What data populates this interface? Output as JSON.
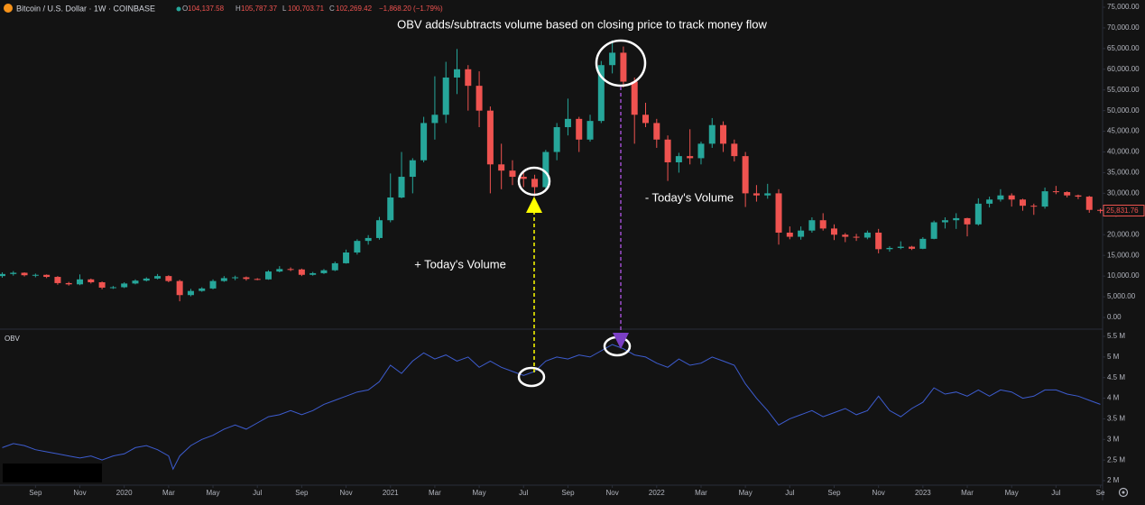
{
  "header": {
    "symbol": "Bitcoin / U.S. Dollar · 1W · COINBASE",
    "ohlc_letters": [
      "O",
      "H",
      "L",
      "C"
    ],
    "ohlc_values": [
      "104,137.58",
      "105,787.37",
      "100,703.71",
      "102,269.42"
    ],
    "change": "−1,868.20 (−1.79%)"
  },
  "chart_data": [
    {
      "type": "candlestick",
      "title": "OBV adds/subtracts volume based on closing price to track money flow",
      "annotations": [
        "+ Today's Volume",
        "- Today's Volume"
      ],
      "up_color": "#26a69a",
      "down_color": "#ef5350",
      "ylim": [
        0,
        75000
      ],
      "yticks": [
        {
          "value": 0,
          "label": "0.00"
        },
        {
          "value": 5000,
          "label": "5,000.00"
        },
        {
          "value": 10000,
          "label": "10,000.00"
        },
        {
          "value": 15000,
          "label": "15,000.00"
        },
        {
          "value": 20000,
          "label": "20,000.00"
        },
        {
          "value": 25000,
          "label": "25,000.00"
        },
        {
          "value": 30000,
          "label": "30,000.00"
        },
        {
          "value": 35000,
          "label": "35,000.00"
        },
        {
          "value": 40000,
          "label": "40,000.00"
        },
        {
          "value": 45000,
          "label": "45,000.00"
        },
        {
          "value": 50000,
          "label": "50,000.00"
        },
        {
          "value": 55000,
          "label": "55,000.00"
        },
        {
          "value": 60000,
          "label": "60,000.00"
        },
        {
          "value": 65000,
          "label": "65,000.00"
        },
        {
          "value": 70000,
          "label": "70,000.00"
        },
        {
          "value": 75000,
          "label": "75,000.00"
        }
      ],
      "last_price": {
        "value": 25831.76,
        "label": "25,831.76"
      },
      "xlim": [
        -0.6,
        49.1
      ],
      "x": [
        -0.5,
        0,
        0.5,
        1,
        1.5,
        2,
        2.5,
        3,
        3.5,
        4,
        4.5,
        5,
        5.5,
        6,
        6.5,
        7,
        7.5,
        8,
        8.5,
        9,
        9.5,
        10,
        10.5,
        11,
        11.5,
        12,
        12.5,
        13,
        13.5,
        14,
        14.5,
        15,
        15.5,
        16,
        16.5,
        17,
        17.5,
        18,
        18.5,
        19,
        19.5,
        20,
        20.5,
        21,
        21.5,
        22,
        22.5,
        23,
        23.5,
        24,
        24.5,
        25,
        25.5,
        26,
        26.5,
        27,
        27.5,
        28,
        28.5,
        29,
        29.5,
        30,
        30.5,
        31,
        31.5,
        32,
        32.5,
        33,
        33.5,
        34,
        34.5,
        35,
        35.5,
        36,
        36.5,
        37,
        37.5,
        38,
        38.5,
        39,
        39.5,
        40,
        40.5,
        41,
        41.5,
        42,
        42.5,
        43,
        43.5,
        44,
        44.5,
        45,
        45.5,
        46,
        46.5,
        47,
        47.5,
        48,
        48.5,
        49
      ],
      "ohlc": [
        [
          10000,
          10900,
          9600,
          10500
        ],
        [
          10500,
          11200,
          10100,
          10800
        ],
        [
          10800,
          10900,
          9900,
          10200
        ],
        [
          10200,
          10600,
          9700,
          10300
        ],
        [
          10300,
          10400,
          9500,
          9800
        ],
        [
          9800,
          10000,
          7900,
          8300
        ],
        [
          8300,
          8600,
          7700,
          8000
        ],
        [
          8000,
          10400,
          7800,
          9200
        ],
        [
          9200,
          9400,
          8200,
          8500
        ],
        [
          8500,
          8700,
          6800,
          7200
        ],
        [
          7200,
          7600,
          6900,
          7300
        ],
        [
          7300,
          8500,
          7100,
          8200
        ],
        [
          8200,
          9200,
          8000,
          8900
        ],
        [
          8900,
          9700,
          8700,
          9400
        ],
        [
          9400,
          10500,
          9200,
          10000
        ],
        [
          10000,
          10200,
          8500,
          8800
        ],
        [
          8800,
          9100,
          3900,
          5400
        ],
        [
          5400,
          6900,
          5100,
          6400
        ],
        [
          6400,
          7300,
          6200,
          7000
        ],
        [
          7000,
          9200,
          6800,
          8800
        ],
        [
          8800,
          10000,
          8600,
          9500
        ],
        [
          9500,
          10100,
          9000,
          9700
        ],
        [
          9700,
          9900,
          8900,
          9300
        ],
        [
          9300,
          9500,
          9000,
          9200
        ],
        [
          9200,
          11400,
          9100,
          11100
        ],
        [
          11100,
          12400,
          10900,
          11700
        ],
        [
          11700,
          12100,
          11200,
          11600
        ],
        [
          11600,
          11800,
          10000,
          10300
        ],
        [
          10300,
          11000,
          10100,
          10700
        ],
        [
          10700,
          11700,
          10500,
          11400
        ],
        [
          11400,
          13500,
          11200,
          13100
        ],
        [
          13100,
          16400,
          13000,
          15700
        ],
        [
          15700,
          18900,
          15200,
          18500
        ],
        [
          18500,
          19900,
          17600,
          19200
        ],
        [
          19200,
          24300,
          18800,
          23500
        ],
        [
          23500,
          34800,
          23000,
          29000
        ],
        [
          29000,
          40000,
          28800,
          34000
        ],
        [
          34000,
          38500,
          30000,
          38000
        ],
        [
          38000,
          48500,
          37500,
          47000
        ],
        [
          47000,
          58300,
          43000,
          49000
        ],
        [
          49000,
          61800,
          47000,
          58000
        ],
        [
          58000,
          64900,
          54000,
          60000
        ],
        [
          60000,
          61000,
          50000,
          56000
        ],
        [
          56000,
          59500,
          46000,
          50000
        ],
        [
          50000,
          51000,
          30000,
          37000
        ],
        [
          37000,
          42000,
          31000,
          35500
        ],
        [
          35500,
          38000,
          32000,
          34000
        ],
        [
          34000,
          35000,
          31500,
          33500
        ],
        [
          33500,
          34500,
          29300,
          31500
        ],
        [
          31500,
          40500,
          31000,
          40000
        ],
        [
          40000,
          47000,
          38000,
          46000
        ],
        [
          46000,
          52900,
          44000,
          48000
        ],
        [
          48000,
          48500,
          40000,
          43000
        ],
        [
          43000,
          49000,
          42500,
          47500
        ],
        [
          47500,
          62000,
          47000,
          61000
        ],
        [
          61000,
          67000,
          59000,
          64000
        ],
        [
          64000,
          65500,
          55600,
          57000
        ],
        [
          57000,
          58000,
          42000,
          49000
        ],
        [
          49000,
          51900,
          46000,
          47000
        ],
        [
          47000,
          48000,
          41000,
          43000
        ],
        [
          43000,
          44000,
          33000,
          37500
        ],
        [
          37500,
          39800,
          35000,
          39000
        ],
        [
          39000,
          45500,
          37000,
          38500
        ],
        [
          38500,
          42500,
          37000,
          42000
        ],
        [
          42000,
          48200,
          41000,
          46500
        ],
        [
          46500,
          47400,
          40000,
          42000
        ],
        [
          42000,
          43000,
          37700,
          39000
        ],
        [
          39000,
          40000,
          26700,
          30000
        ],
        [
          30000,
          32000,
          28000,
          29500
        ],
        [
          29500,
          32300,
          28700,
          30000
        ],
        [
          30000,
          31000,
          17600,
          20500
        ],
        [
          20500,
          22000,
          18900,
          19500
        ],
        [
          19500,
          22000,
          18800,
          21000
        ],
        [
          21000,
          24200,
          20500,
          23500
        ],
        [
          23500,
          25200,
          21000,
          21500
        ],
        [
          21500,
          22500,
          18700,
          20000
        ],
        [
          20000,
          20400,
          18200,
          19500
        ],
        [
          19500,
          20200,
          18500,
          19300
        ],
        [
          19300,
          21000,
          18900,
          20500
        ],
        [
          20500,
          21400,
          15500,
          16500
        ],
        [
          16500,
          17200,
          15900,
          16800
        ],
        [
          16800,
          18400,
          16500,
          17100
        ],
        [
          17100,
          17300,
          16300,
          16600
        ],
        [
          16600,
          19400,
          16500,
          19000
        ],
        [
          19000,
          23400,
          18900,
          23000
        ],
        [
          23000,
          24200,
          21500,
          23500
        ],
        [
          23500,
          25200,
          21400,
          24000
        ],
        [
          24000,
          24100,
          19600,
          22500
        ],
        [
          22500,
          28800,
          22200,
          27500
        ],
        [
          27500,
          29200,
          26600,
          28500
        ],
        [
          28500,
          31000,
          28000,
          29500
        ],
        [
          29500,
          30000,
          26800,
          28500
        ],
        [
          28500,
          28700,
          25800,
          27000
        ],
        [
          27000,
          27500,
          24800,
          26800
        ],
        [
          26800,
          31400,
          26300,
          30500
        ],
        [
          30500,
          31800,
          29800,
          30300
        ],
        [
          30300,
          30500,
          29000,
          29500
        ],
        [
          29500,
          29700,
          28600,
          29200
        ],
        [
          29200,
          29400,
          25300,
          26000
        ],
        [
          26000,
          26300,
          25200,
          25800
        ]
      ]
    },
    {
      "type": "line",
      "title": "OBV",
      "color": "#3d5ccf",
      "ylim": [
        2,
        5.5
      ],
      "yticks": [
        {
          "value": 2,
          "label": "2 M"
        },
        {
          "value": 2.5,
          "label": "2.5 M"
        },
        {
          "value": 3,
          "label": "3 M"
        },
        {
          "value": 3.5,
          "label": "3.5 M"
        },
        {
          "value": 4,
          "label": "4 M"
        },
        {
          "value": 4.5,
          "label": "4.5 M"
        },
        {
          "value": 5,
          "label": "5 M"
        },
        {
          "value": 5.5,
          "label": "5.5 M"
        }
      ],
      "xlim": [
        -0.6,
        49.1
      ],
      "xticks": [
        {
          "value": 1,
          "label": "Sep"
        },
        {
          "value": 3,
          "label": "Nov"
        },
        {
          "value": 5,
          "label": "2020"
        },
        {
          "value": 7,
          "label": "Mar"
        },
        {
          "value": 9,
          "label": "May"
        },
        {
          "value": 11,
          "label": "Jul"
        },
        {
          "value": 13,
          "label": "Sep"
        },
        {
          "value": 15,
          "label": "Nov"
        },
        {
          "value": 17,
          "label": "2021"
        },
        {
          "value": 19,
          "label": "Mar"
        },
        {
          "value": 21,
          "label": "May"
        },
        {
          "value": 23,
          "label": "Jul"
        },
        {
          "value": 25,
          "label": "Sep"
        },
        {
          "value": 27,
          "label": "Nov"
        },
        {
          "value": 29,
          "label": "2022"
        },
        {
          "value": 31,
          "label": "Mar"
        },
        {
          "value": 33,
          "label": "May"
        },
        {
          "value": 35,
          "label": "Jul"
        },
        {
          "value": 37,
          "label": "Sep"
        },
        {
          "value": 39,
          "label": "Nov"
        },
        {
          "value": 41,
          "label": "2023"
        },
        {
          "value": 43,
          "label": "Mar"
        },
        {
          "value": 45,
          "label": "May"
        },
        {
          "value": 47,
          "label": "Jul"
        },
        {
          "value": 49,
          "label": "Se"
        }
      ],
      "x": [
        -0.5,
        0,
        0.5,
        1,
        1.5,
        2,
        2.5,
        3,
        3.5,
        4,
        4.5,
        5,
        5.5,
        6,
        6.5,
        7,
        7.2,
        7.5,
        8,
        8.5,
        9,
        9.5,
        10,
        10.5,
        11,
        11.5,
        12,
        12.5,
        13,
        13.5,
        14,
        14.5,
        15,
        15.5,
        16,
        16.5,
        17,
        17.5,
        18,
        18.5,
        19,
        19.5,
        20,
        20.5,
        21,
        21.5,
        22,
        22.5,
        23,
        23.5,
        24,
        24.5,
        25,
        25.5,
        26,
        26.5,
        27,
        27.5,
        28,
        28.5,
        29,
        29.5,
        30,
        30.5,
        31,
        31.5,
        32,
        32.5,
        33,
        33.5,
        34,
        34.5,
        35,
        35.5,
        36,
        36.5,
        37,
        37.5,
        38,
        38.5,
        39,
        39.5,
        40,
        40.5,
        41,
        41.5,
        42,
        42.5,
        43,
        43.5,
        44,
        44.5,
        45,
        45.5,
        46,
        46.5,
        47,
        47.5,
        48,
        48.5,
        49
      ],
      "values": [
        2.8,
        2.9,
        2.85,
        2.75,
        2.7,
        2.65,
        2.6,
        2.55,
        2.6,
        2.5,
        2.6,
        2.65,
        2.8,
        2.85,
        2.75,
        2.6,
        2.28,
        2.6,
        2.85,
        3.0,
        3.1,
        3.25,
        3.35,
        3.25,
        3.4,
        3.55,
        3.6,
        3.7,
        3.6,
        3.7,
        3.85,
        3.95,
        4.05,
        4.15,
        4.2,
        4.4,
        4.8,
        4.6,
        4.9,
        5.1,
        4.95,
        5.05,
        4.9,
        5.0,
        4.75,
        4.9,
        4.75,
        4.65,
        4.55,
        4.65,
        4.9,
        5.0,
        4.95,
        5.05,
        5.0,
        5.15,
        5.3,
        5.2,
        5.05,
        5.0,
        4.85,
        4.75,
        4.95,
        4.8,
        4.85,
        5.0,
        4.9,
        4.8,
        4.35,
        4.0,
        3.7,
        3.35,
        3.5,
        3.6,
        3.7,
        3.55,
        3.65,
        3.75,
        3.6,
        3.7,
        4.05,
        3.7,
        3.55,
        3.75,
        3.9,
        4.25,
        4.1,
        4.15,
        4.05,
        4.2,
        4.05,
        4.2,
        4.15,
        4.0,
        4.05,
        4.2,
        4.2,
        4.1,
        4.05,
        3.95,
        3.85
      ]
    }
  ]
}
